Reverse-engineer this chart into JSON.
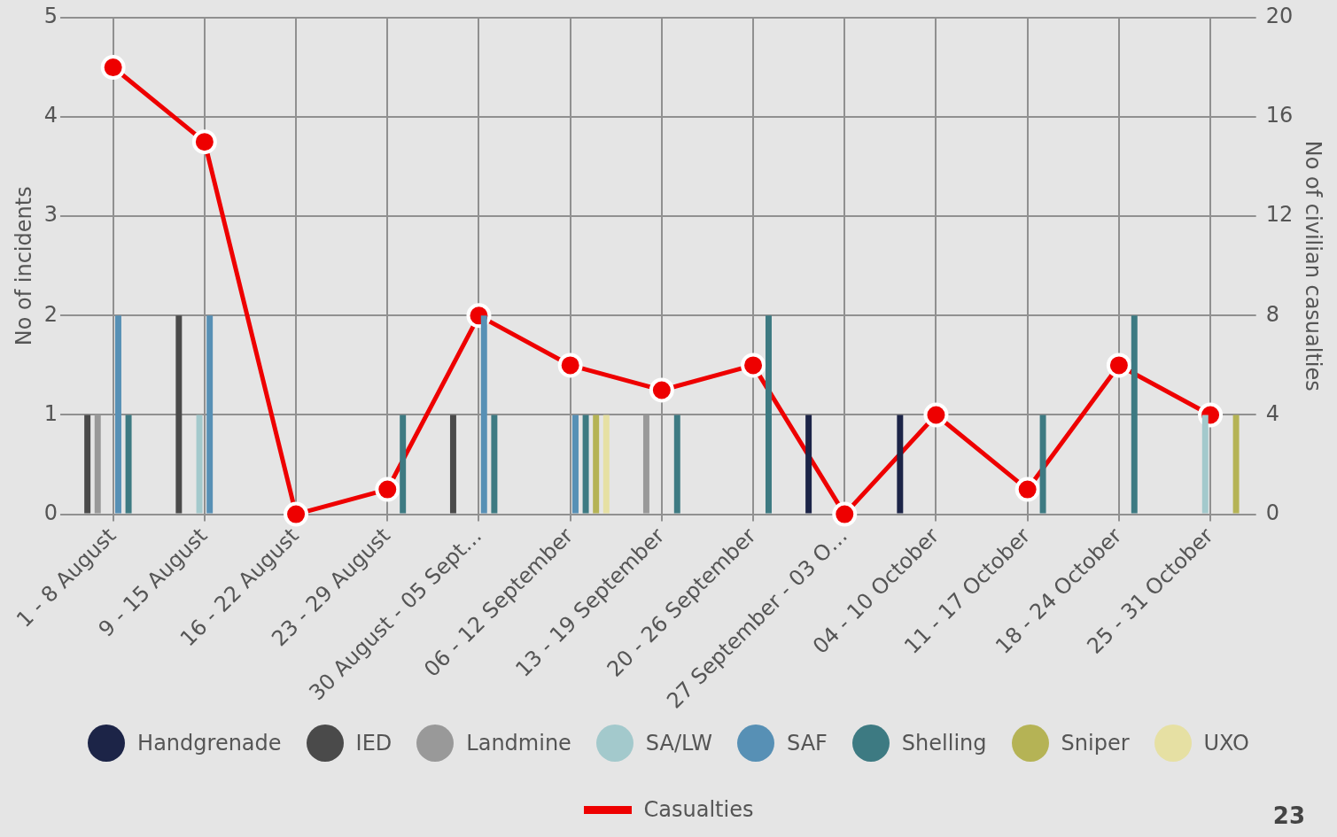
{
  "chart_data": {
    "type": "bar",
    "ylabel": "No of incidents",
    "y2label": "No of civilian casualties",
    "categories": [
      "1 - 8 August",
      "9 - 15 August",
      "16 - 22 August",
      "23 - 29 August",
      "30 August - 05 Sept…",
      "06 - 12 September",
      "13 - 19 September",
      "20 - 26 September",
      "27 September - 03 O…",
      "04 - 10 October",
      "11 - 17 October",
      "18 - 24 October",
      "25 - 31 October"
    ],
    "series": [
      {
        "name": "Handgrenade",
        "color": "#1c2447",
        "values": [
          0,
          0,
          0,
          0,
          0,
          0,
          0,
          0,
          1,
          1,
          0,
          0,
          0
        ]
      },
      {
        "name": "IED",
        "color": "#4a4a4a",
        "values": [
          1,
          2,
          0,
          0,
          1,
          0,
          0,
          0,
          0,
          0,
          0,
          0,
          0
        ]
      },
      {
        "name": "Landmine",
        "color": "#999999",
        "values": [
          1,
          0,
          0,
          0,
          0,
          0,
          1,
          0,
          0,
          0,
          0,
          0,
          0
        ]
      },
      {
        "name": "SA/LW",
        "color": "#a3c9cc",
        "values": [
          0,
          1,
          0,
          0,
          0,
          0,
          0,
          0,
          0,
          0,
          0,
          0,
          1
        ]
      },
      {
        "name": "SAF",
        "color": "#5790b5",
        "values": [
          2,
          2,
          0,
          0,
          2,
          1,
          0,
          0,
          0,
          0,
          0,
          0,
          0
        ]
      },
      {
        "name": "Shelling",
        "color": "#3d7a82",
        "values": [
          1,
          0,
          0,
          1,
          1,
          1,
          1,
          2,
          0,
          0,
          1,
          2,
          0
        ]
      },
      {
        "name": "Sniper",
        "color": "#b5b355",
        "values": [
          0,
          0,
          0,
          0,
          0,
          1,
          0,
          0,
          0,
          0,
          0,
          0,
          1
        ]
      },
      {
        "name": "UXO",
        "color": "#e6e0a3",
        "values": [
          0,
          0,
          0,
          0,
          0,
          1,
          0,
          0,
          0,
          0,
          0,
          0,
          0
        ]
      },
      {
        "name": "Casualties",
        "type": "line",
        "axis": "y2",
        "color": "#ee0000",
        "values": [
          18,
          15,
          0,
          1,
          8,
          6,
          5,
          6,
          0,
          4,
          1,
          6,
          4
        ]
      }
    ],
    "ylim": [
      0,
      5
    ],
    "yticks": [
      0,
      1,
      2,
      3,
      4,
      5
    ],
    "y2lim": [
      0,
      20
    ],
    "y2ticks": [
      0,
      4,
      8,
      12,
      16,
      20
    ],
    "grid": true,
    "legend": "bottom",
    "marker": "circle",
    "line_style": "solid",
    "annotations": [
      "23"
    ]
  }
}
